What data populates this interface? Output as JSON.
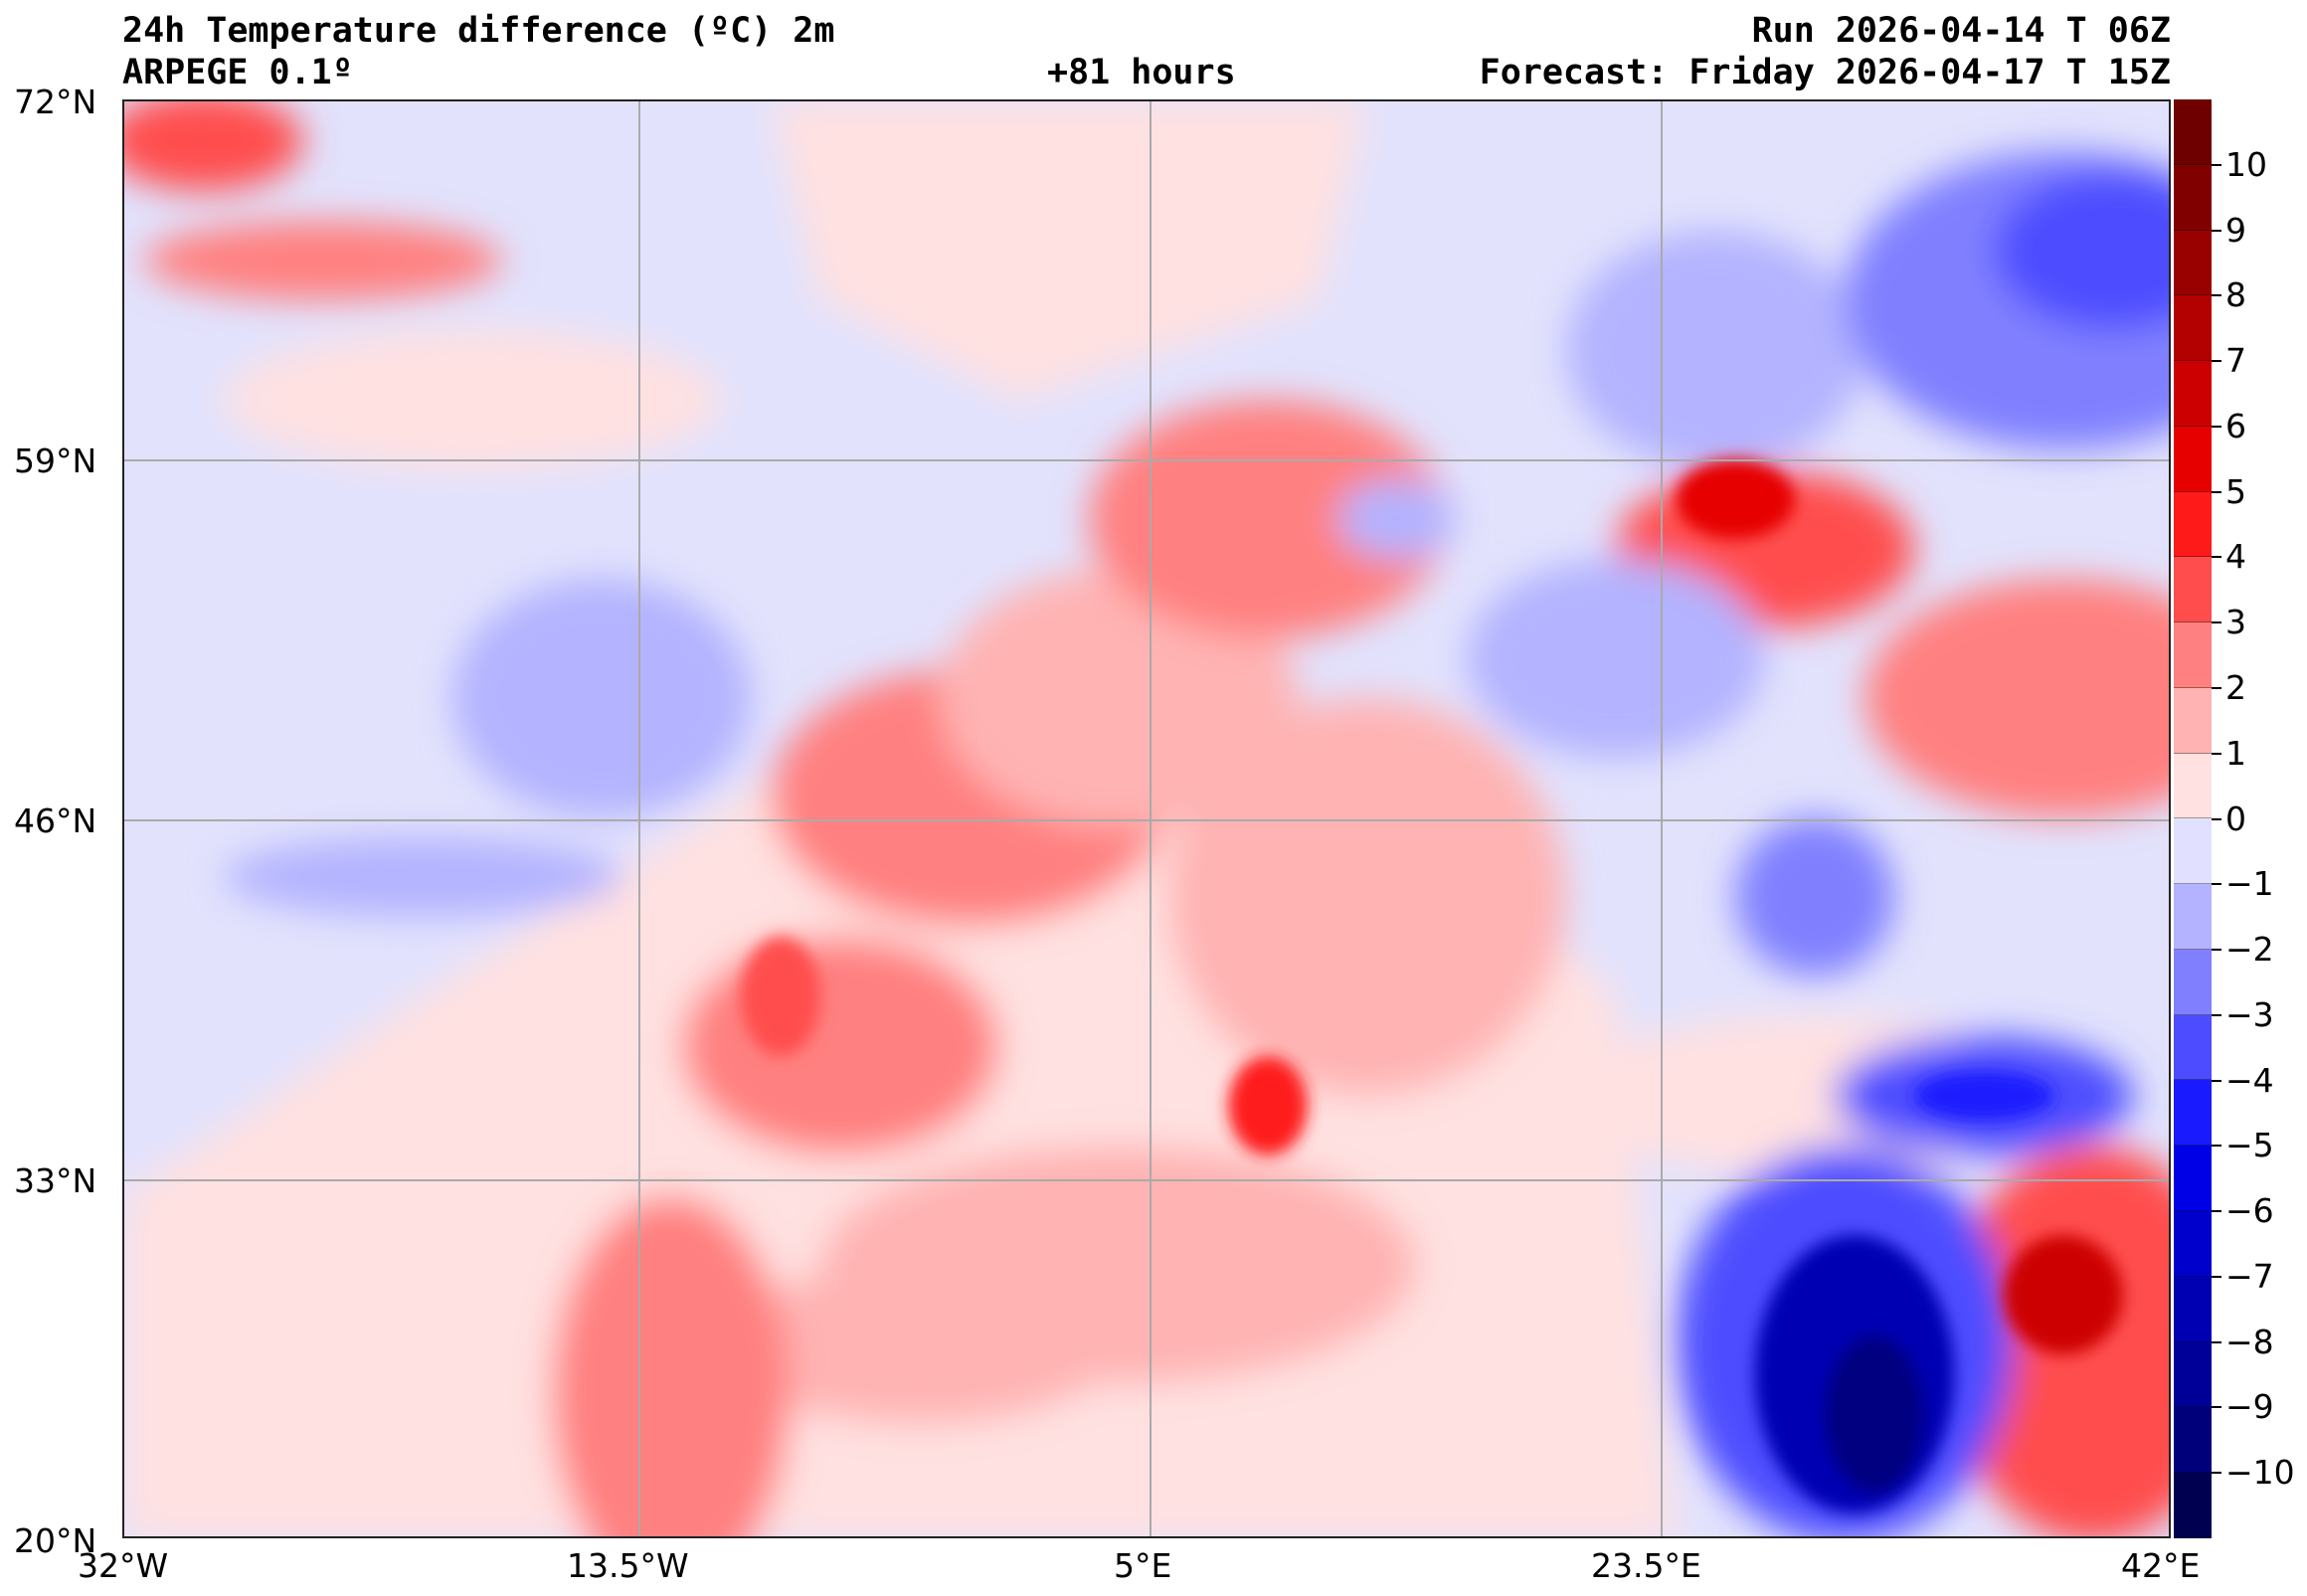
{
  "header": {
    "title": "24h Temperature difference (ºC) 2m",
    "model": "ARPEGE 0.1º",
    "lead_time": "+81 hours",
    "run": "Run 2026-04-14 T 06Z",
    "forecast": "Forecast: Friday 2026-04-17 T 15Z"
  },
  "axes": {
    "lat_labels": [
      "72°N",
      "59°N",
      "46°N",
      "33°N",
      "20°N"
    ],
    "lon_labels": [
      "32°W",
      "13.5°W",
      "5°E",
      "23.5°E",
      "42°E"
    ]
  },
  "colorbar": {
    "ticks": [
      "10",
      "9",
      "8",
      "7",
      "6",
      "5",
      "4",
      "3",
      "2",
      "1",
      "0",
      "−1",
      "−2",
      "−3",
      "−4",
      "−5",
      "−6",
      "−7",
      "−8",
      "−9",
      "−10"
    ],
    "colors": [
      "#6e0000",
      "#800000",
      "#990000",
      "#b30000",
      "#cc0000",
      "#e60000",
      "#ff1a1a",
      "#ff4d4d",
      "#ff8080",
      "#ffb3b3",
      "#ffe1e1",
      "#e1e1ff",
      "#b3b3ff",
      "#8080ff",
      "#4d4dff",
      "#1a1aff",
      "#0000e6",
      "#0000cc",
      "#0000b3",
      "#000099",
      "#00007a",
      "#000050"
    ]
  }
}
